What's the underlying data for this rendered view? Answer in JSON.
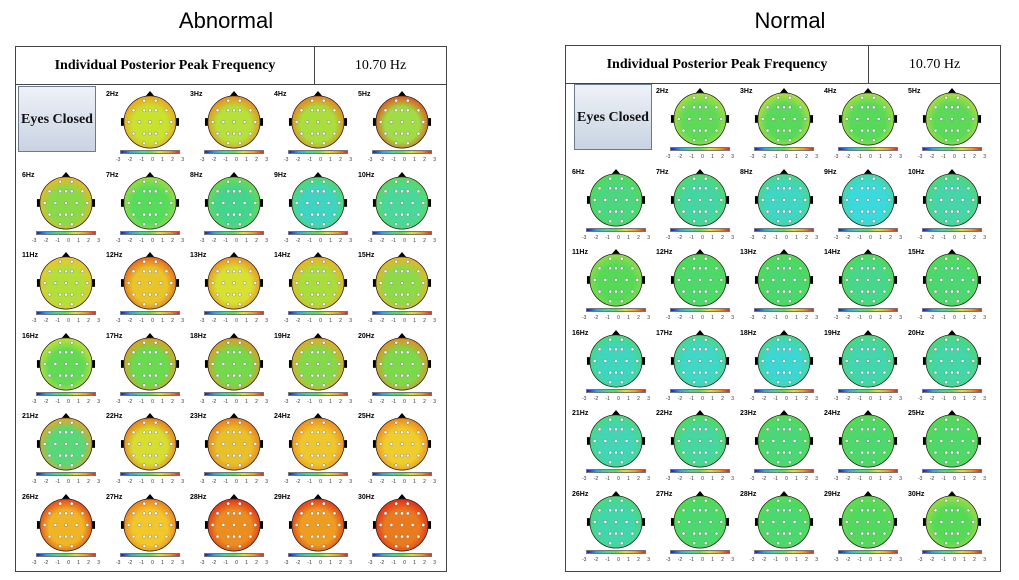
{
  "titles": {
    "left": "Abnormal",
    "right": "Normal"
  },
  "header": {
    "label": "Individual Posterior Peak Frequency",
    "value": "10.70 Hz"
  },
  "eyes_label": "Eyes Closed",
  "tick_labels": [
    "-3",
    "-2",
    "-1",
    "0",
    "1",
    "2",
    "3"
  ],
  "color_scale_colors": [
    "#1d1dc9",
    "#2aa6e8",
    "#3bdd90",
    "#55e04a",
    "#d8e42c",
    "#f0a01f",
    "#e22a1a"
  ],
  "abnormal_maps": [
    {
      "hz": "2Hz",
      "outer": "#f0a21f",
      "inner": "#c8e22e"
    },
    {
      "hz": "3Hz",
      "outer": "#ee8a1d",
      "inner": "#b6e03a"
    },
    {
      "hz": "4Hz",
      "outer": "#ec7e1e",
      "inner": "#a9de3c"
    },
    {
      "hz": "5Hz",
      "outer": "#e4521b",
      "inner": "#9fdc45"
    },
    {
      "hz": "6Hz",
      "outer": "#f3b424",
      "inner": "#8ad948"
    },
    {
      "hz": "7Hz",
      "outer": "#9ddc41",
      "inner": "#55dc5a"
    },
    {
      "hz": "8Hz",
      "outer": "#6fd94b",
      "inner": "#43d58c"
    },
    {
      "hz": "9Hz",
      "outer": "#4fd968",
      "inner": "#3fd4c2"
    },
    {
      "hz": "10Hz",
      "outer": "#5ed75a",
      "inner": "#4ad89a"
    },
    {
      "hz": "11Hz",
      "outer": "#f0c32a",
      "inner": "#b3df3a"
    },
    {
      "hz": "12Hz",
      "outer": "#e8661c",
      "inner": "#e9c42a"
    },
    {
      "hz": "13Hz",
      "outer": "#ef8e1f",
      "inner": "#d8e132"
    },
    {
      "hz": "14Hz",
      "outer": "#f3ad22",
      "inner": "#a8dd3c"
    },
    {
      "hz": "15Hz",
      "outer": "#f1b023",
      "inner": "#8ed947"
    },
    {
      "hz": "16Hz",
      "outer": "#c6e033",
      "inner": "#62da55"
    },
    {
      "hz": "17Hz",
      "outer": "#e89b20",
      "inner": "#6ada4f"
    },
    {
      "hz": "18Hz",
      "outer": "#e89521",
      "inner": "#74d94b"
    },
    {
      "hz": "19Hz",
      "outer": "#eda422",
      "inner": "#84d94a"
    },
    {
      "hz": "20Hz",
      "outer": "#e98a1f",
      "inner": "#7cd94a"
    },
    {
      "hz": "21Hz",
      "outer": "#eba522",
      "inner": "#58d878"
    },
    {
      "hz": "22Hz",
      "outer": "#ea7a1e",
      "inner": "#d7dd31"
    },
    {
      "hz": "23Hz",
      "outer": "#ea791e",
      "inner": "#e8c12a"
    },
    {
      "hz": "24Hz",
      "outer": "#ed8a1f",
      "inner": "#efc62b"
    },
    {
      "hz": "25Hz",
      "outer": "#eb851f",
      "inner": "#efcd2c"
    },
    {
      "hz": "26Hz",
      "outer": "#e2451a",
      "inner": "#f0b425"
    },
    {
      "hz": "27Hz",
      "outer": "#eb7d1e",
      "inner": "#f2c72c"
    },
    {
      "hz": "28Hz",
      "outer": "#e02f18",
      "inner": "#ec8d1f"
    },
    {
      "hz": "29Hz",
      "outer": "#e23a19",
      "inner": "#ee9d21"
    },
    {
      "hz": "30Hz",
      "outer": "#de2a18",
      "inner": "#ea7a1e"
    }
  ],
  "normal_maps": [
    {
      "hz": "2Hz",
      "outer": "#a9de3c",
      "inner": "#5fda58"
    },
    {
      "hz": "3Hz",
      "outer": "#b6df3a",
      "inner": "#58d95a"
    },
    {
      "hz": "4Hz",
      "outer": "#a3de3e",
      "inner": "#57da5a"
    },
    {
      "hz": "5Hz",
      "outer": "#aade3c",
      "inner": "#5bd958"
    },
    {
      "hz": "6Hz",
      "outer": "#52da55",
      "inner": "#4ad77f"
    },
    {
      "hz": "7Hz",
      "outer": "#52d968",
      "inner": "#44d6a2"
    },
    {
      "hz": "8Hz",
      "outer": "#4ad887",
      "inner": "#3fd6c4"
    },
    {
      "hz": "9Hz",
      "outer": "#44d7a6",
      "inner": "#3ad9de"
    },
    {
      "hz": "10Hz",
      "outer": "#4ed875",
      "inner": "#45d5a8"
    },
    {
      "hz": "11Hz",
      "outer": "#8fdb46",
      "inner": "#55da58"
    },
    {
      "hz": "12Hz",
      "outer": "#4fda53",
      "inner": "#4cd96a"
    },
    {
      "hz": "13Hz",
      "outer": "#4fda52",
      "inner": "#4ad86e"
    },
    {
      "hz": "14Hz",
      "outer": "#4fda55",
      "inner": "#47d78a"
    },
    {
      "hz": "15Hz",
      "outer": "#52da53",
      "inner": "#4bd872"
    },
    {
      "hz": "16Hz",
      "outer": "#48d880",
      "inner": "#3fd6bf"
    },
    {
      "hz": "17Hz",
      "outer": "#49d887",
      "inner": "#3fd7c6"
    },
    {
      "hz": "18Hz",
      "outer": "#47d88f",
      "inner": "#3cd7d2"
    },
    {
      "hz": "19Hz",
      "outer": "#4bd877",
      "inner": "#41d6ae"
    },
    {
      "hz": "20Hz",
      "outer": "#4bd874",
      "inner": "#43d6a6"
    },
    {
      "hz": "21Hz",
      "outer": "#4ad87f",
      "inner": "#42d6b5"
    },
    {
      "hz": "22Hz",
      "outer": "#4fda58",
      "inner": "#45d79e"
    },
    {
      "hz": "23Hz",
      "outer": "#52da52",
      "inner": "#4ad877"
    },
    {
      "hz": "24Hz",
      "outer": "#55da50",
      "inner": "#4cd86c"
    },
    {
      "hz": "25Hz",
      "outer": "#56da50",
      "inner": "#4dd868"
    },
    {
      "hz": "26Hz",
      "outer": "#4ad878",
      "inner": "#42d6ab"
    },
    {
      "hz": "27Hz",
      "outer": "#53da50",
      "inner": "#4bd86f"
    },
    {
      "hz": "28Hz",
      "outer": "#55da4f",
      "inner": "#4bd86f"
    },
    {
      "hz": "29Hz",
      "outer": "#62da4f",
      "inner": "#52d95d"
    },
    {
      "hz": "30Hz",
      "outer": "#9fdc40",
      "inner": "#55da58"
    }
  ]
}
